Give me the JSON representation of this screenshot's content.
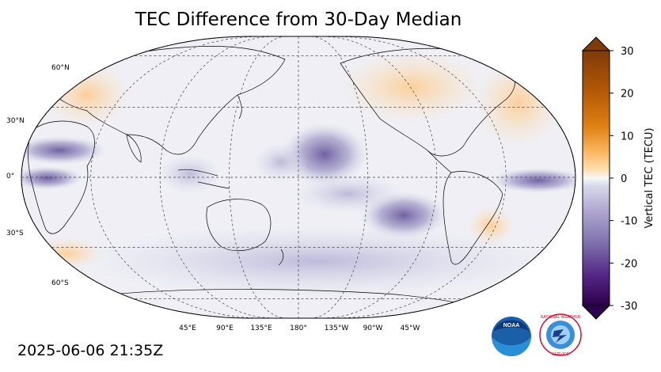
{
  "title": "TEC Difference from 30-Day Median",
  "timestamp": "2025-06-06 21:35Z",
  "map": {
    "projection": "Robinson",
    "central_longitude": 180,
    "lat_labels": [
      "60°N",
      "30°N",
      "0°",
      "30°S",
      "60°S"
    ],
    "lon_labels": [
      "45°E",
      "90°E",
      "135°E",
      "180°",
      "135°W",
      "90°W",
      "45°W"
    ],
    "gridlines": true
  },
  "colorbar": {
    "label": "Vertical TEC (TECU)",
    "ticks": [
      "30",
      "20",
      "10",
      "0",
      "-10",
      "-20",
      "-30"
    ],
    "range": [
      -30,
      30
    ],
    "extend": "both",
    "colormap": "PuOr_r",
    "colors": {
      "neg_max": "#2d004b",
      "neg_mid": "#8073ac",
      "neg_low": "#d8daeb",
      "zero": "#f7f7f7",
      "pos_low": "#fee0b6",
      "pos_mid": "#e08214",
      "pos_max": "#7f3b08"
    }
  },
  "logos": {
    "noaa": "noaa-logo",
    "nws": "nws-logo"
  }
}
